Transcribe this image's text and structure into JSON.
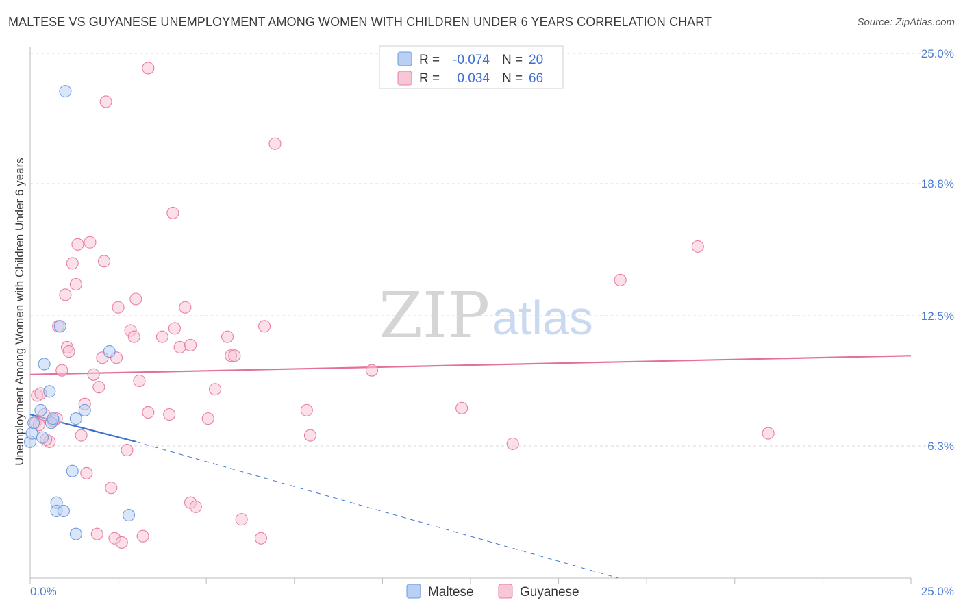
{
  "title": "MALTESE VS GUYANESE UNEMPLOYMENT AMONG WOMEN WITH CHILDREN UNDER 6 YEARS CORRELATION CHART",
  "source": "Source: ZipAtlas.com",
  "watermark": {
    "zip": "ZIP",
    "atlas": "atlas"
  },
  "colors": {
    "maltese": "#6f9be0",
    "maltese_fill": "#b9cff3",
    "guyanese": "#e87fa3",
    "guyanese_fill": "#f7c7d7",
    "trend_maltese": "#3b73cf",
    "trend_guyanese": "#e2709a",
    "grid": "#d9d9d9",
    "tick_text": "#4a7bd0"
  },
  "legend": {
    "rows": [
      {
        "series": "Maltese",
        "r_label": "R =",
        "r_value": "-0.074",
        "n_label": "N =",
        "n_value": "20"
      },
      {
        "series": "Guyanese",
        "r_label": "R =",
        "r_value": "0.034",
        "n_label": "N =",
        "n_value": "66"
      }
    ]
  },
  "chart_data": {
    "type": "scatter",
    "title": "MALTESE VS GUYANESE UNEMPLOYMENT AMONG WOMEN WITH CHILDREN UNDER 6 YEARS CORRELATION CHART",
    "xlabel": "",
    "ylabel": "Unemployment Among Women with Children Under 6 years",
    "xlim": [
      0,
      25
    ],
    "ylim": [
      0,
      25
    ],
    "x_tick_labels": [
      "0.0%",
      "25.0%"
    ],
    "y_ticks": [
      6.3,
      12.5,
      18.8,
      25.0
    ],
    "y_tick_labels": [
      "6.3%",
      "12.5%",
      "18.8%",
      "25.0%"
    ],
    "grid": true,
    "series": [
      {
        "name": "Maltese",
        "r": -0.074,
        "n": 20,
        "points": [
          {
            "x": 0.0,
            "y": 6.5
          },
          {
            "x": 0.05,
            "y": 6.9
          },
          {
            "x": 0.1,
            "y": 7.4
          },
          {
            "x": 0.3,
            "y": 8.0
          },
          {
            "x": 0.35,
            "y": 6.7
          },
          {
            "x": 0.4,
            "y": 10.2
          },
          {
            "x": 0.55,
            "y": 8.9
          },
          {
            "x": 0.6,
            "y": 7.4
          },
          {
            "x": 0.65,
            "y": 7.6
          },
          {
            "x": 0.85,
            "y": 12.0
          },
          {
            "x": 1.0,
            "y": 23.2
          },
          {
            "x": 1.2,
            "y": 5.1
          },
          {
            "x": 1.3,
            "y": 7.6
          },
          {
            "x": 1.55,
            "y": 8.0
          },
          {
            "x": 0.75,
            "y": 3.6
          },
          {
            "x": 0.75,
            "y": 3.2
          },
          {
            "x": 0.95,
            "y": 3.2
          },
          {
            "x": 1.3,
            "y": 2.1
          },
          {
            "x": 2.25,
            "y": 10.8
          },
          {
            "x": 2.8,
            "y": 3.0
          }
        ],
        "trend": {
          "x0": 0.0,
          "y0": 7.8,
          "x1": 3.0,
          "y1": 6.5,
          "dashed_to_x": 16.7,
          "dashed_to_y": 0.0
        }
      },
      {
        "name": "Guyanese",
        "r": 0.034,
        "n": 66,
        "points": [
          {
            "x": 0.15,
            "y": 7.4
          },
          {
            "x": 0.2,
            "y": 8.7
          },
          {
            "x": 0.3,
            "y": 8.8
          },
          {
            "x": 0.4,
            "y": 7.8
          },
          {
            "x": 0.55,
            "y": 6.5
          },
          {
            "x": 0.65,
            "y": 7.5
          },
          {
            "x": 0.75,
            "y": 7.6
          },
          {
            "x": 0.8,
            "y": 12.0
          },
          {
            "x": 0.9,
            "y": 9.9
          },
          {
            "x": 1.0,
            "y": 13.5
          },
          {
            "x": 1.05,
            "y": 11.0
          },
          {
            "x": 1.1,
            "y": 10.8
          },
          {
            "x": 1.2,
            "y": 15.0
          },
          {
            "x": 1.3,
            "y": 14.0
          },
          {
            "x": 1.35,
            "y": 15.9
          },
          {
            "x": 1.45,
            "y": 6.8
          },
          {
            "x": 1.55,
            "y": 8.3
          },
          {
            "x": 1.6,
            "y": 5.0
          },
          {
            "x": 1.7,
            "y": 16.0
          },
          {
            "x": 1.8,
            "y": 9.7
          },
          {
            "x": 1.9,
            "y": 2.1
          },
          {
            "x": 1.95,
            "y": 9.1
          },
          {
            "x": 2.05,
            "y": 10.5
          },
          {
            "x": 2.1,
            "y": 15.1
          },
          {
            "x": 2.15,
            "y": 22.7
          },
          {
            "x": 2.3,
            "y": 4.3
          },
          {
            "x": 2.4,
            "y": 1.9
          },
          {
            "x": 2.45,
            "y": 10.5
          },
          {
            "x": 2.5,
            "y": 12.9
          },
          {
            "x": 2.6,
            "y": 1.7
          },
          {
            "x": 2.75,
            "y": 6.1
          },
          {
            "x": 2.85,
            "y": 11.8
          },
          {
            "x": 2.95,
            "y": 11.5
          },
          {
            "x": 3.0,
            "y": 13.3
          },
          {
            "x": 3.1,
            "y": 9.4
          },
          {
            "x": 3.2,
            "y": 2.0
          },
          {
            "x": 3.35,
            "y": 7.9
          },
          {
            "x": 3.35,
            "y": 24.3
          },
          {
            "x": 3.75,
            "y": 11.5
          },
          {
            "x": 3.95,
            "y": 7.8
          },
          {
            "x": 4.05,
            "y": 17.4
          },
          {
            "x": 4.1,
            "y": 11.9
          },
          {
            "x": 4.25,
            "y": 11.0
          },
          {
            "x": 4.4,
            "y": 12.9
          },
          {
            "x": 4.55,
            "y": 11.1
          },
          {
            "x": 4.55,
            "y": 3.6
          },
          {
            "x": 4.7,
            "y": 3.4
          },
          {
            "x": 5.05,
            "y": 7.6
          },
          {
            "x": 5.25,
            "y": 9.0
          },
          {
            "x": 5.6,
            "y": 11.5
          },
          {
            "x": 5.7,
            "y": 10.6
          },
          {
            "x": 5.8,
            "y": 10.6
          },
          {
            "x": 6.0,
            "y": 2.8
          },
          {
            "x": 6.55,
            "y": 1.9
          },
          {
            "x": 6.65,
            "y": 12.0
          },
          {
            "x": 6.95,
            "y": 20.7
          },
          {
            "x": 7.85,
            "y": 8.0
          },
          {
            "x": 7.95,
            "y": 6.8
          },
          {
            "x": 9.7,
            "y": 9.9
          },
          {
            "x": 12.25,
            "y": 8.1
          },
          {
            "x": 13.7,
            "y": 6.4
          },
          {
            "x": 16.75,
            "y": 14.2
          },
          {
            "x": 18.95,
            "y": 15.8
          },
          {
            "x": 20.95,
            "y": 6.9
          },
          {
            "x": 0.25,
            "y": 7.3
          },
          {
            "x": 0.45,
            "y": 6.6
          }
        ],
        "trend": {
          "x0": 0.0,
          "y0": 9.7,
          "x1": 25.0,
          "y1": 10.6
        }
      }
    ]
  }
}
